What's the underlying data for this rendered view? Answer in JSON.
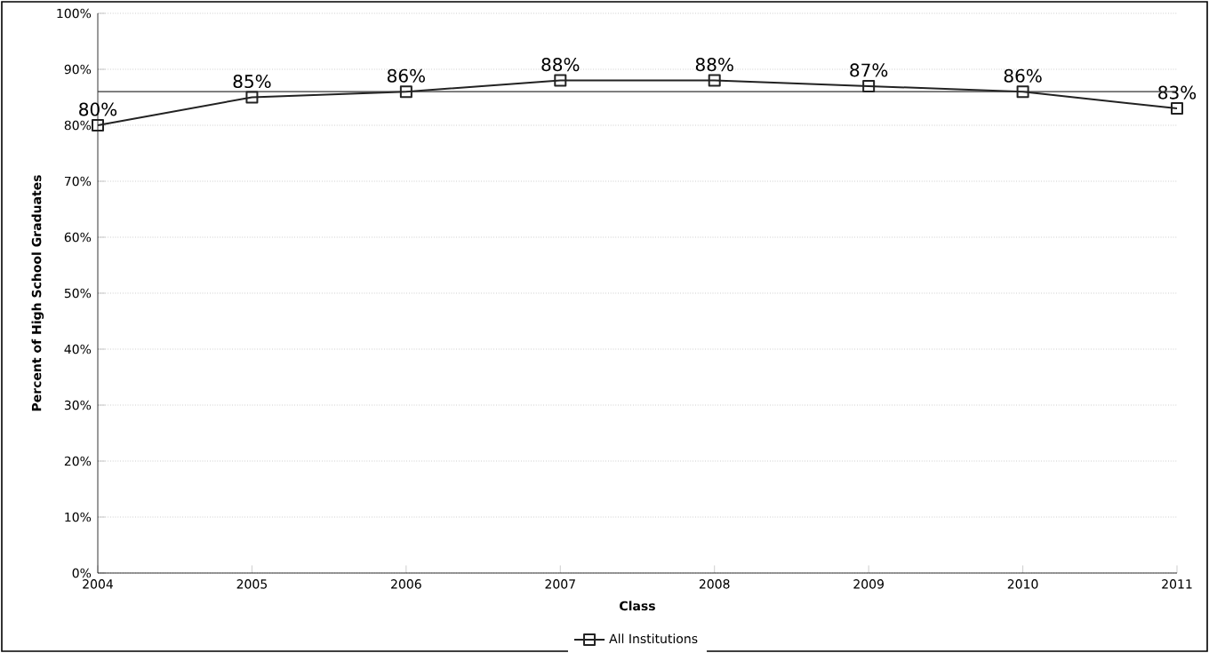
{
  "chart_data": {
    "type": "line",
    "xlabel": "Class",
    "ylabel": "Percent of High School Graduates",
    "categories": [
      "2004",
      "2005",
      "2006",
      "2007",
      "2008",
      "2009",
      "2010",
      "2011"
    ],
    "series": [
      {
        "name": "All Institutions",
        "color": "#222222",
        "values": [
          80,
          85,
          86,
          88,
          88,
          87,
          86,
          83
        ]
      }
    ],
    "ylim": [
      0,
      100
    ],
    "yticks": [
      {
        "value": 0,
        "label": "0%"
      },
      {
        "value": 10,
        "label": "10%"
      },
      {
        "value": 20,
        "label": "20%"
      },
      {
        "value": 30,
        "label": "30%"
      },
      {
        "value": 40,
        "label": "40%"
      },
      {
        "value": 50,
        "label": "50%"
      },
      {
        "value": 60,
        "label": "60%"
      },
      {
        "value": 70,
        "label": "70%"
      },
      {
        "value": 80,
        "label": "80%"
      },
      {
        "value": 90,
        "label": "90%"
      },
      {
        "value": 100,
        "label": "100%"
      }
    ],
    "value_labels": [
      "80%",
      "85%",
      "86%",
      "88%",
      "88%",
      "87%",
      "86%",
      "83%"
    ],
    "ref_lines": [
      {
        "axis": "y",
        "value": 86,
        "color": "#333333"
      }
    ],
    "grid": "y",
    "legend": "bottom",
    "marker": "square",
    "line_style": "solid"
  }
}
